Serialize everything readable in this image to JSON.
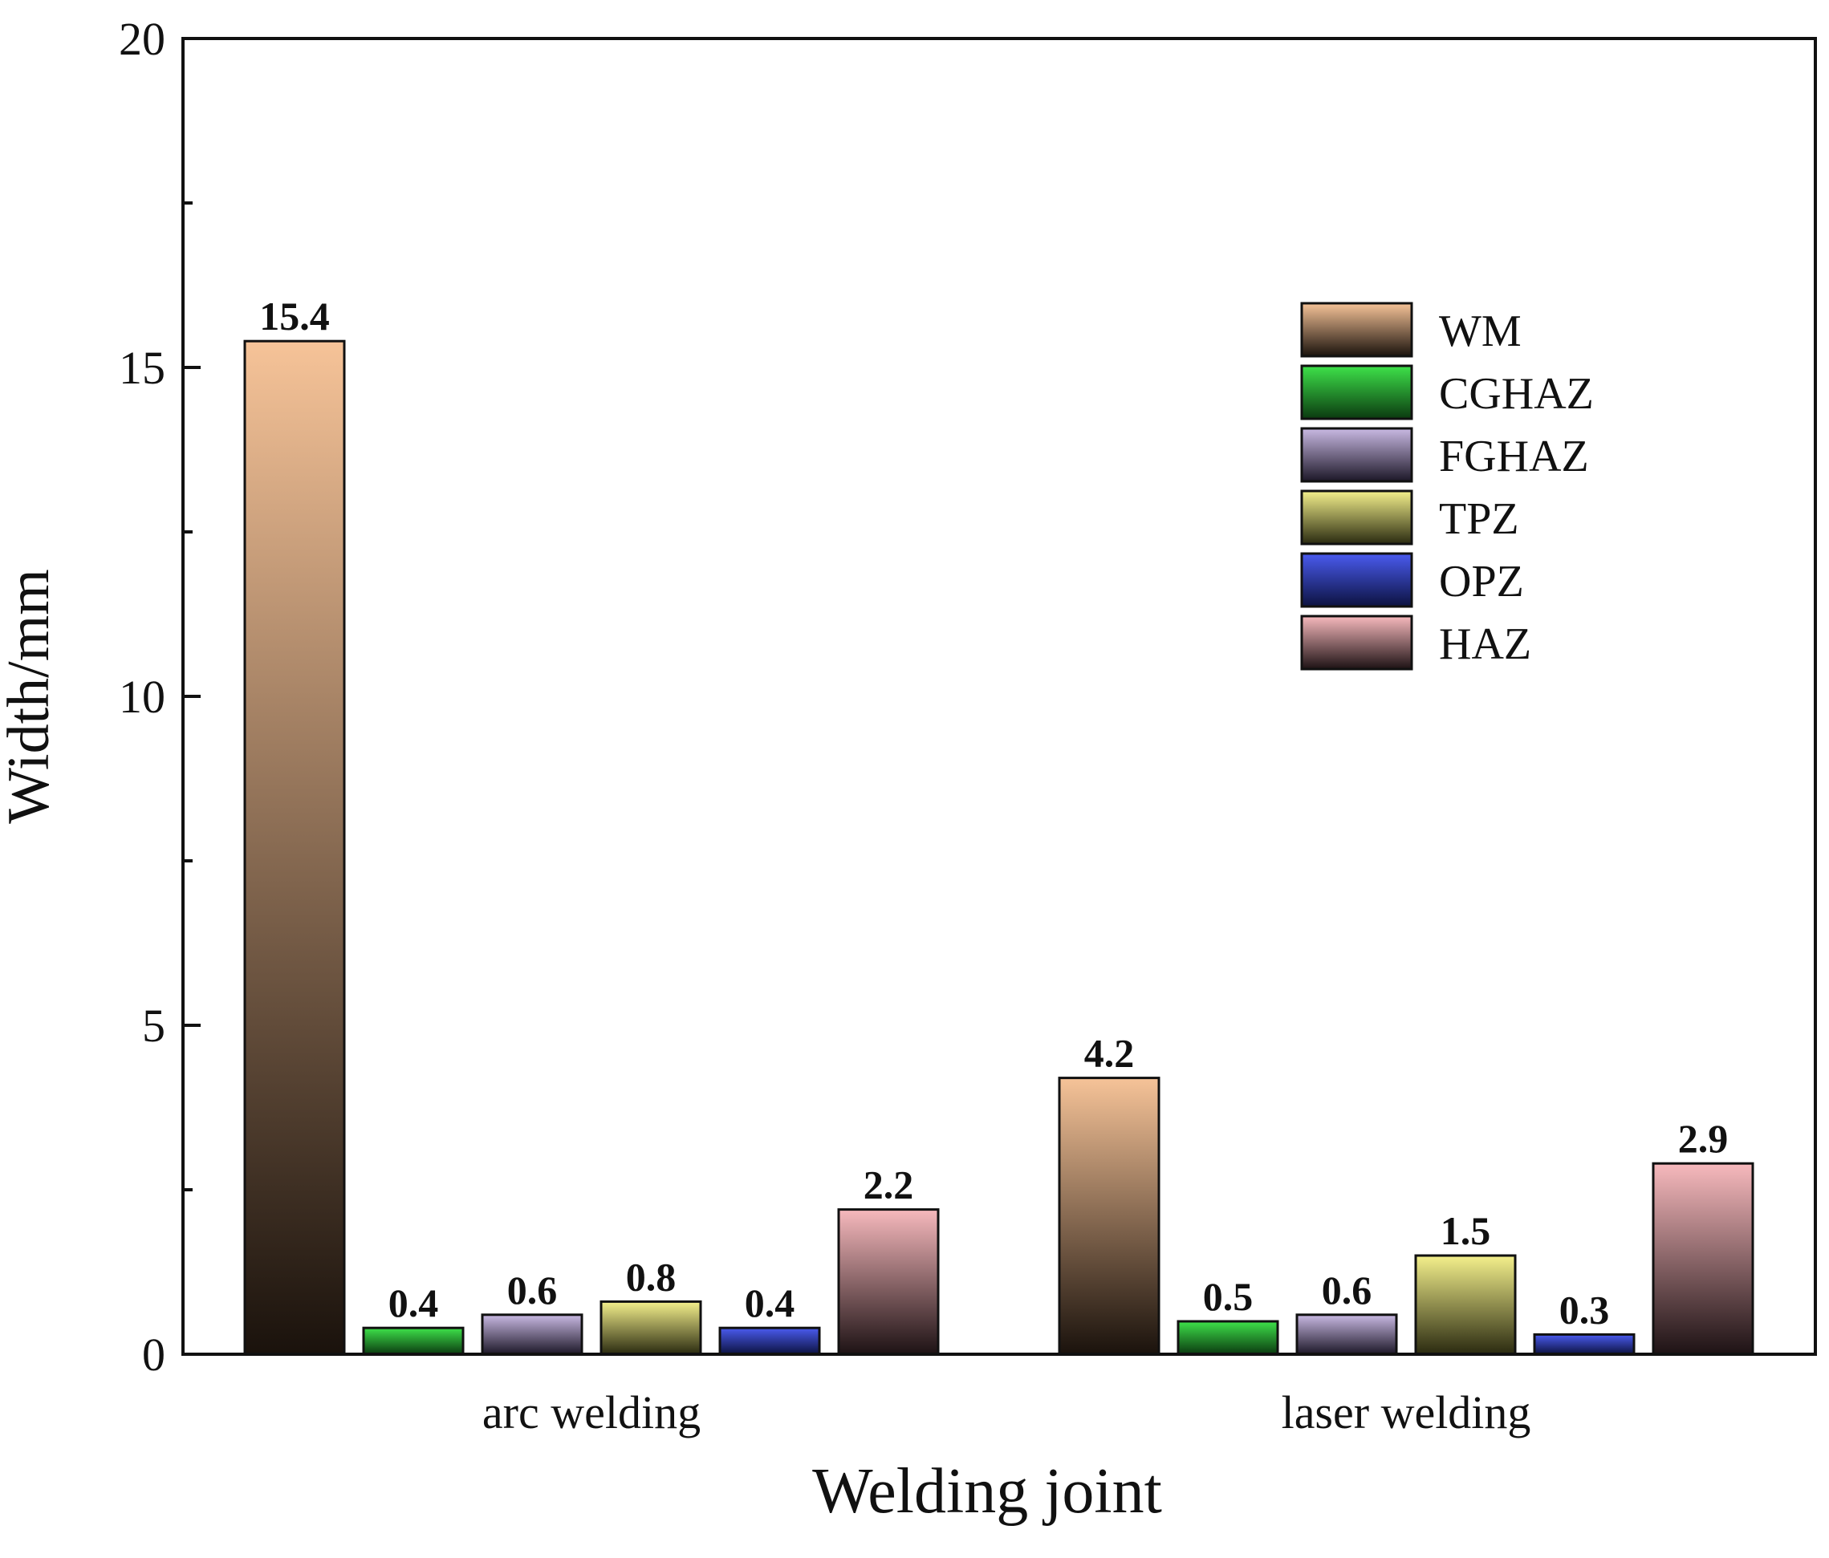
{
  "chart_data": {
    "type": "bar",
    "title": "",
    "xlabel": "Welding joint",
    "ylabel": "Width/mm",
    "ylim": [
      0,
      20
    ],
    "yticks": [
      0,
      5,
      10,
      15,
      20
    ],
    "categories": [
      "arc welding",
      "laser welding"
    ],
    "series": [
      {
        "name": "WM",
        "values": [
          15.4,
          4.2
        ],
        "value_labels": [
          "15.4",
          "4.2"
        ],
        "color_top": "#f6c398",
        "color_bottom": "#1a120c"
      },
      {
        "name": "CGHAZ",
        "values": [
          0.4,
          0.5
        ],
        "value_labels": [
          "0.4",
          "0.5"
        ],
        "color_top": "#3ee24a",
        "color_bottom": "#0b3a10"
      },
      {
        "name": "FGHAZ",
        "values": [
          0.6,
          0.6
        ],
        "value_labels": [
          "0.6",
          "0.6"
        ],
        "color_top": "#c9b9e3",
        "color_bottom": "#1c1727"
      },
      {
        "name": "TPZ",
        "values": [
          0.8,
          1.5
        ],
        "value_labels": [
          "0.8",
          "1.5"
        ],
        "color_top": "#f4f08c",
        "color_bottom": "#2a2a10"
      },
      {
        "name": "OPZ",
        "values": [
          0.4,
          0.3
        ],
        "value_labels": [
          "0.4",
          "0.3"
        ],
        "color_top": "#4a5bef",
        "color_bottom": "#0c1240"
      },
      {
        "name": "HAZ",
        "values": [
          2.2,
          2.9
        ],
        "value_labels": [
          "2.2",
          "2.9"
        ],
        "color_top": "#f7b9bd",
        "color_bottom": "#1d1214"
      }
    ],
    "legend_position": "top-right",
    "grid": false
  }
}
